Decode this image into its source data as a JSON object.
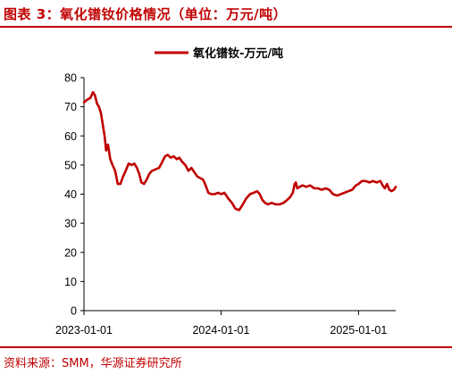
{
  "figure": {
    "title": "图表 3：氧化镨钕价格情况（单位：万元/吨）",
    "source": "资料来源：SMM，华源证券研究所",
    "accent_color": "#c00000"
  },
  "chart_data": {
    "type": "line",
    "title": "",
    "xlabel": "",
    "ylabel": "",
    "ylim": [
      0,
      80
    ],
    "yticks": [
      0,
      10,
      20,
      30,
      40,
      50,
      60,
      70,
      80
    ],
    "xlim": [
      "2023-01-01",
      "2025-04-10"
    ],
    "xticks": [
      "2023-01-01",
      "2024-01-01",
      "2025-01-01"
    ],
    "grid": false,
    "legend_position": "top-center",
    "series": [
      {
        "name": "氧化镨钕-万元/吨",
        "color": "#c00000",
        "points": [
          [
            "2023-01-01",
            71.5
          ],
          [
            "2023-01-10",
            72.5
          ],
          [
            "2023-01-18",
            73.0
          ],
          [
            "2023-01-25",
            75.0
          ],
          [
            "2023-01-30",
            74.0
          ],
          [
            "2023-02-05",
            71.0
          ],
          [
            "2023-02-10",
            70.0
          ],
          [
            "2023-02-15",
            68.0
          ],
          [
            "2023-02-20",
            64.0
          ],
          [
            "2023-02-25",
            60.0
          ],
          [
            "2023-03-01",
            55.0
          ],
          [
            "2023-03-06",
            57.0
          ],
          [
            "2023-03-12",
            52.0
          ],
          [
            "2023-03-18",
            50.0
          ],
          [
            "2023-03-25",
            48.0
          ],
          [
            "2023-04-01",
            43.5
          ],
          [
            "2023-04-08",
            43.5
          ],
          [
            "2023-04-15",
            46.0
          ],
          [
            "2023-04-22",
            48.0
          ],
          [
            "2023-04-30",
            50.5
          ],
          [
            "2023-05-08",
            50.0
          ],
          [
            "2023-05-15",
            50.5
          ],
          [
            "2023-05-22",
            49.0
          ],
          [
            "2023-05-28",
            47.0
          ],
          [
            "2023-06-03",
            44.0
          ],
          [
            "2023-06-10",
            43.5
          ],
          [
            "2023-06-17",
            45.0
          ],
          [
            "2023-06-24",
            47.0
          ],
          [
            "2023-07-01",
            48.0
          ],
          [
            "2023-07-10",
            48.5
          ],
          [
            "2023-07-20",
            49.0
          ],
          [
            "2023-07-28",
            51.0
          ],
          [
            "2023-08-05",
            53.0
          ],
          [
            "2023-08-12",
            53.5
          ],
          [
            "2023-08-20",
            52.5
          ],
          [
            "2023-08-28",
            53.0
          ],
          [
            "2023-09-05",
            52.0
          ],
          [
            "2023-09-12",
            52.5
          ],
          [
            "2023-09-20",
            51.0
          ],
          [
            "2023-09-28",
            50.0
          ],
          [
            "2023-10-06",
            48.0
          ],
          [
            "2023-10-14",
            49.0
          ],
          [
            "2023-10-22",
            47.5
          ],
          [
            "2023-10-30",
            46.0
          ],
          [
            "2023-11-07",
            45.5
          ],
          [
            "2023-11-14",
            45.0
          ],
          [
            "2023-11-21",
            43.0
          ],
          [
            "2023-11-28",
            40.5
          ],
          [
            "2023-12-06",
            40.0
          ],
          [
            "2023-12-15",
            40.0
          ],
          [
            "2023-12-24",
            40.5
          ],
          [
            "2024-01-01",
            40.0
          ],
          [
            "2024-01-10",
            40.5
          ],
          [
            "2024-01-20",
            38.5
          ],
          [
            "2024-01-30",
            37.0
          ],
          [
            "2024-02-08",
            35.0
          ],
          [
            "2024-02-18",
            34.5
          ],
          [
            "2024-02-28",
            36.5
          ],
          [
            "2024-03-08",
            38.5
          ],
          [
            "2024-03-18",
            40.0
          ],
          [
            "2024-03-28",
            40.5
          ],
          [
            "2024-04-06",
            41.0
          ],
          [
            "2024-04-13",
            40.0
          ],
          [
            "2024-04-20",
            38.0
          ],
          [
            "2024-04-27",
            37.0
          ],
          [
            "2024-05-05",
            36.5
          ],
          [
            "2024-05-15",
            37.0
          ],
          [
            "2024-05-25",
            36.5
          ],
          [
            "2024-06-05",
            36.5
          ],
          [
            "2024-06-15",
            37.0
          ],
          [
            "2024-06-25",
            38.0
          ],
          [
            "2024-07-03",
            39.0
          ],
          [
            "2024-07-10",
            40.5
          ],
          [
            "2024-07-15",
            43.5
          ],
          [
            "2024-07-18",
            44.0
          ],
          [
            "2024-07-22",
            42.0
          ],
          [
            "2024-07-28",
            42.5
          ],
          [
            "2024-08-05",
            43.0
          ],
          [
            "2024-08-15",
            42.5
          ],
          [
            "2024-08-25",
            43.0
          ],
          [
            "2024-09-05",
            42.0
          ],
          [
            "2024-09-15",
            42.0
          ],
          [
            "2024-09-25",
            41.5
          ],
          [
            "2024-10-05",
            42.0
          ],
          [
            "2024-10-15",
            41.5
          ],
          [
            "2024-10-25",
            40.0
          ],
          [
            "2024-11-05",
            39.5
          ],
          [
            "2024-11-15",
            40.0
          ],
          [
            "2024-11-25",
            40.5
          ],
          [
            "2024-12-05",
            41.0
          ],
          [
            "2024-12-15",
            41.5
          ],
          [
            "2024-12-25",
            43.0
          ],
          [
            "2025-01-01",
            43.5
          ],
          [
            "2025-01-10",
            44.5
          ],
          [
            "2025-01-20",
            44.5
          ],
          [
            "2025-01-30",
            44.0
          ],
          [
            "2025-02-08",
            44.5
          ],
          [
            "2025-02-18",
            44.0
          ],
          [
            "2025-02-28",
            44.5
          ],
          [
            "2025-03-06",
            43.0
          ],
          [
            "2025-03-12",
            42.0
          ],
          [
            "2025-03-18",
            43.5
          ],
          [
            "2025-03-24",
            41.5
          ],
          [
            "2025-03-30",
            41.0
          ],
          [
            "2025-04-05",
            41.5
          ],
          [
            "2025-04-10",
            42.5
          ]
        ]
      }
    ]
  }
}
